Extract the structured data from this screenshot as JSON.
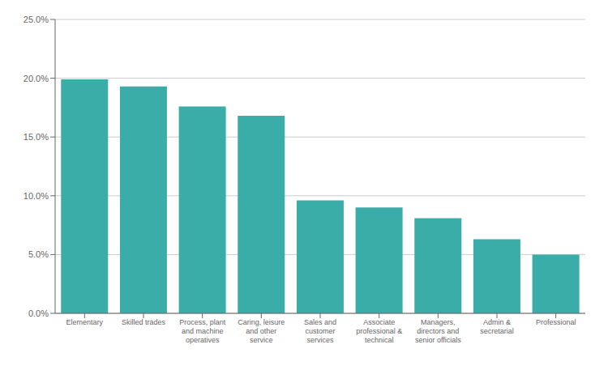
{
  "chart_data": {
    "type": "bar",
    "categories": [
      "Elementary",
      "Skilled trades",
      "Process, plant\nand machine\noperatives",
      "Caring, leisure\nand other\nservice",
      "Sales and\ncustomer\nservices",
      "Associate\nprofessional &\ntechnical",
      "Managers,\ndirectors and\nsenior officials",
      "Admin &\nsecretarial",
      "Professional"
    ],
    "values": [
      0.199,
      0.193,
      0.176,
      0.168,
      0.096,
      0.09,
      0.081,
      0.063,
      0.05
    ],
    "color": "#3aada8",
    "ylim": [
      0,
      0.25
    ],
    "yticks": [
      {
        "value": 0.0,
        "label": "0.0%"
      },
      {
        "value": 0.05,
        "label": "5.0%"
      },
      {
        "value": 0.1,
        "label": "10.0%"
      },
      {
        "value": 0.15,
        "label": "15.0%"
      },
      {
        "value": 0.2,
        "label": "20.0%"
      },
      {
        "value": 0.25,
        "label": "25.0%"
      }
    ],
    "grid": true
  }
}
